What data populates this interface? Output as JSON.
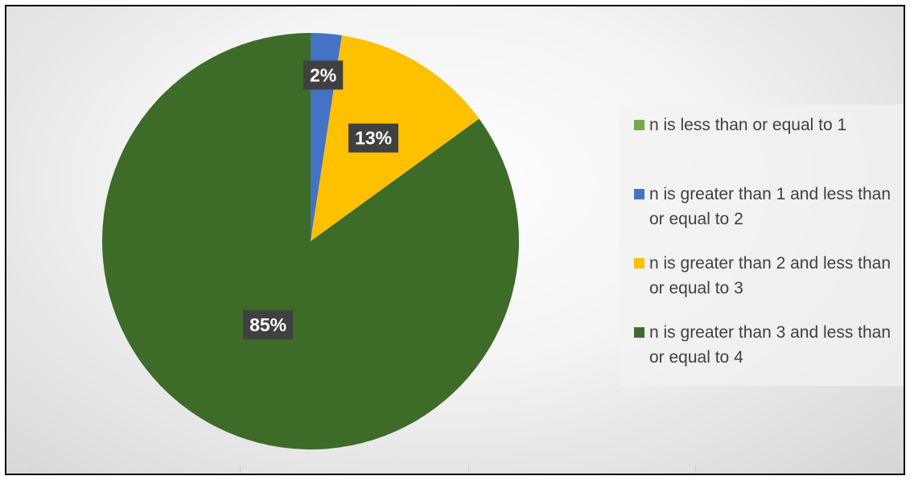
{
  "chart_data": {
    "type": "pie",
    "title": "",
    "categories": [
      "n is less than or equal to 1",
      "n is greater than 1 and less than or equal to 2",
      "n is greater than 2 and less than or equal to 3",
      "n is greater than 3 and less than or equal to 4"
    ],
    "values": [
      0,
      2.4,
      12.6,
      85
    ],
    "data_labels": [
      "",
      "2%",
      "13%",
      "85%"
    ],
    "colors": [
      "#70ad47",
      "#4472c4",
      "#ffc000",
      "#3d6b28"
    ],
    "start_angle_deg": 0,
    "direction": "clockwise",
    "legend_position": "right"
  }
}
